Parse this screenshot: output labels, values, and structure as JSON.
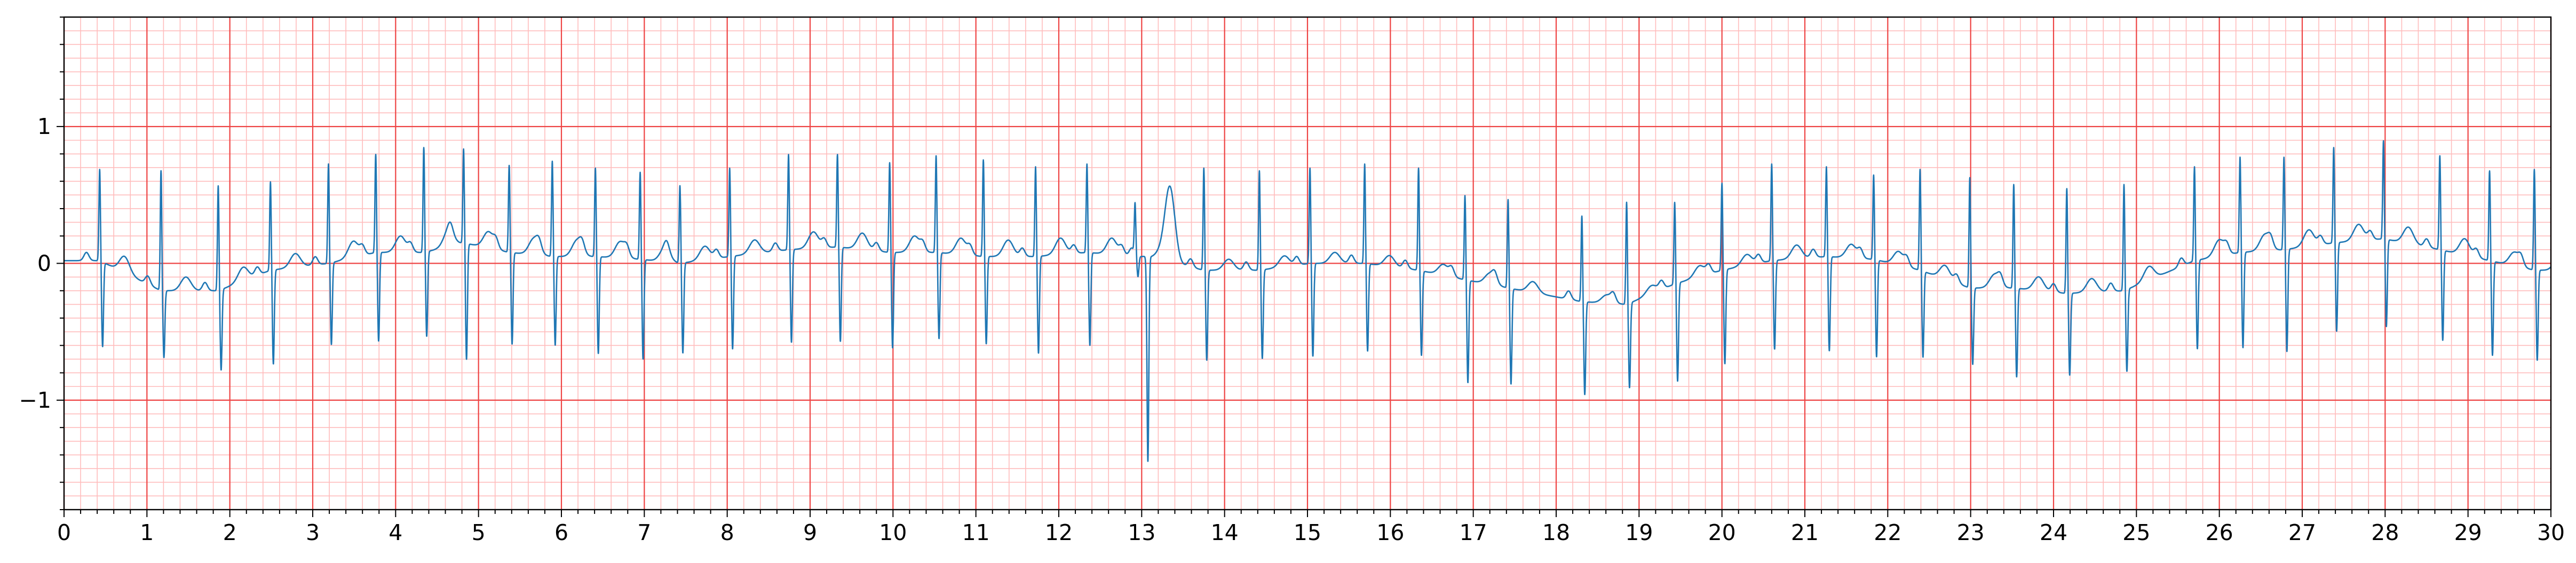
{
  "chart_data": {
    "type": "line",
    "title": "",
    "xlabel": "",
    "ylabel": "",
    "xlim": [
      0,
      30
    ],
    "ylim": [
      -1.8,
      1.8
    ],
    "grid": true,
    "x_ticks": [
      0,
      1,
      2,
      3,
      4,
      5,
      6,
      7,
      8,
      9,
      10,
      11,
      12,
      13,
      14,
      15,
      16,
      17,
      18,
      19,
      20,
      21,
      22,
      23,
      24,
      25,
      26,
      27,
      28,
      29,
      30
    ],
    "x_tick_labels": [
      "0",
      "1",
      "2",
      "3",
      "4",
      "5",
      "6",
      "7",
      "8",
      "9",
      "10",
      "11",
      "12",
      "13",
      "14",
      "15",
      "16",
      "17",
      "18",
      "19",
      "20",
      "21",
      "22",
      "23",
      "24",
      "25",
      "26",
      "27",
      "28",
      "29",
      "30"
    ],
    "y_ticks": [
      1,
      0,
      -1
    ],
    "y_tick_labels": [
      "1",
      "0",
      "−1"
    ],
    "colors": {
      "trace": "#1f77b4",
      "major_grid": "#ee4444",
      "minor_grid": "#ffbcbc",
      "axes": "#000000"
    },
    "series": [
      {
        "beats": [
          {
            "t": 0.43,
            "r": 0.69,
            "s": -0.6,
            "base": 0.02,
            "twave": 0.12
          },
          {
            "t": 1.17,
            "r": 0.68,
            "s": -0.69,
            "base": -0.2,
            "twave": 0.1
          },
          {
            "t": 1.86,
            "r": 0.57,
            "s": -0.79,
            "base": -0.2,
            "twave": 0.1
          },
          {
            "t": 2.49,
            "r": 0.6,
            "s": -0.74,
            "base": -0.05,
            "twave": 0.1
          },
          {
            "t": 3.19,
            "r": 0.73,
            "s": -0.6,
            "base": 0.0,
            "twave": 0.12
          },
          {
            "t": 3.76,
            "r": 0.8,
            "s": -0.57,
            "base": 0.08,
            "twave": 0.12
          },
          {
            "t": 4.34,
            "r": 0.85,
            "s": -0.54,
            "base": 0.08,
            "twave": 0.12
          },
          {
            "t": 4.82,
            "r": 0.84,
            "s": -0.7,
            "base": 0.15,
            "twave": 0.12
          },
          {
            "t": 5.37,
            "r": 0.72,
            "s": -0.59,
            "base": 0.08,
            "twave": 0.12
          },
          {
            "t": 5.89,
            "r": 0.75,
            "s": -0.6,
            "base": 0.05,
            "twave": 0.12
          },
          {
            "t": 6.41,
            "r": 0.7,
            "s": -0.66,
            "base": 0.05,
            "twave": 0.12
          },
          {
            "t": 6.95,
            "r": 0.67,
            "s": -0.7,
            "base": 0.03,
            "twave": 0.1
          },
          {
            "t": 7.43,
            "r": 0.57,
            "s": -0.66,
            "base": 0.0,
            "twave": 0.1
          },
          {
            "t": 8.03,
            "r": 0.7,
            "s": -0.63,
            "base": 0.05,
            "twave": 0.1
          },
          {
            "t": 8.74,
            "r": 0.8,
            "s": -0.58,
            "base": 0.1,
            "twave": 0.12
          },
          {
            "t": 9.33,
            "r": 0.8,
            "s": -0.57,
            "base": 0.12,
            "twave": 0.12
          },
          {
            "t": 9.96,
            "r": 0.74,
            "s": -0.62,
            "base": 0.08,
            "twave": 0.12
          },
          {
            "t": 10.52,
            "r": 0.79,
            "s": -0.55,
            "base": 0.08,
            "twave": 0.12
          },
          {
            "t": 11.09,
            "r": 0.76,
            "s": -0.59,
            "base": 0.05,
            "twave": 0.12
          },
          {
            "t": 11.72,
            "r": 0.71,
            "s": -0.66,
            "base": 0.05,
            "twave": 0.12
          },
          {
            "t": 12.34,
            "r": 0.73,
            "s": -0.6,
            "base": 0.08,
            "twave": 0.12
          },
          {
            "t": 12.92,
            "r": 0.42,
            "s": -0.1,
            "base": 0.05,
            "twave": 0.05
          },
          {
            "t": 13.04,
            "r": 0.05,
            "s": -1.45,
            "base": 0.05,
            "twave": 0.55
          },
          {
            "t": 13.75,
            "r": 0.7,
            "s": -0.71,
            "base": -0.05,
            "twave": 0.08
          },
          {
            "t": 14.42,
            "r": 0.68,
            "s": -0.7,
            "base": -0.05,
            "twave": 0.08
          },
          {
            "t": 15.03,
            "r": 0.7,
            "s": -0.68,
            "base": 0.0,
            "twave": 0.08
          },
          {
            "t": 15.69,
            "r": 0.73,
            "s": -0.64,
            "base": 0.0,
            "twave": 0.08
          },
          {
            "t": 16.34,
            "r": 0.7,
            "s": -0.67,
            "base": -0.05,
            "twave": 0.08
          },
          {
            "t": 16.9,
            "r": 0.5,
            "s": -0.87,
            "base": -0.12,
            "twave": 0.08
          },
          {
            "t": 17.42,
            "r": 0.47,
            "s": -0.88,
            "base": -0.18,
            "twave": 0.08
          },
          {
            "t": 18.31,
            "r": 0.35,
            "s": -0.96,
            "base": -0.28,
            "twave": 0.06
          },
          {
            "t": 18.85,
            "r": 0.45,
            "s": -0.92,
            "base": -0.3,
            "twave": 0.06
          },
          {
            "t": 19.43,
            "r": 0.45,
            "s": -0.87,
            "base": -0.15,
            "twave": 0.08
          },
          {
            "t": 20.0,
            "r": 0.59,
            "s": -0.74,
            "base": -0.05,
            "twave": 0.08
          },
          {
            "t": 20.6,
            "r": 0.73,
            "s": -0.63,
            "base": 0.02,
            "twave": 0.1
          },
          {
            "t": 21.26,
            "r": 0.71,
            "s": -0.64,
            "base": 0.05,
            "twave": 0.1
          },
          {
            "t": 21.83,
            "r": 0.65,
            "s": -0.68,
            "base": 0.03,
            "twave": 0.1
          },
          {
            "t": 22.39,
            "r": 0.69,
            "s": -0.68,
            "base": -0.05,
            "twave": 0.1
          },
          {
            "t": 22.99,
            "r": 0.63,
            "s": -0.74,
            "base": -0.18,
            "twave": 0.1
          },
          {
            "t": 23.52,
            "r": 0.58,
            "s": -0.83,
            "base": -0.18,
            "twave": 0.1
          },
          {
            "t": 24.16,
            "r": 0.55,
            "s": -0.82,
            "base": -0.22,
            "twave": 0.1
          },
          {
            "t": 24.85,
            "r": 0.58,
            "s": -0.8,
            "base": -0.2,
            "twave": 0.1
          },
          {
            "t": 25.7,
            "r": 0.71,
            "s": -0.63,
            "base": 0.02,
            "twave": 0.12
          },
          {
            "t": 26.25,
            "r": 0.78,
            "s": -0.62,
            "base": 0.08,
            "twave": 0.12
          },
          {
            "t": 26.78,
            "r": 0.78,
            "s": -0.65,
            "base": 0.1,
            "twave": 0.12
          },
          {
            "t": 27.38,
            "r": 0.85,
            "s": -0.5,
            "base": 0.15,
            "twave": 0.12
          },
          {
            "t": 27.98,
            "r": 0.9,
            "s": -0.46,
            "base": 0.18,
            "twave": 0.12
          },
          {
            "t": 28.66,
            "r": 0.79,
            "s": -0.56,
            "base": 0.1,
            "twave": 0.12
          },
          {
            "t": 29.26,
            "r": 0.68,
            "s": -0.67,
            "base": 0.02,
            "twave": 0.1
          },
          {
            "t": 29.8,
            "r": 0.69,
            "s": -0.71,
            "base": -0.05,
            "twave": 0.1
          }
        ]
      }
    ]
  }
}
